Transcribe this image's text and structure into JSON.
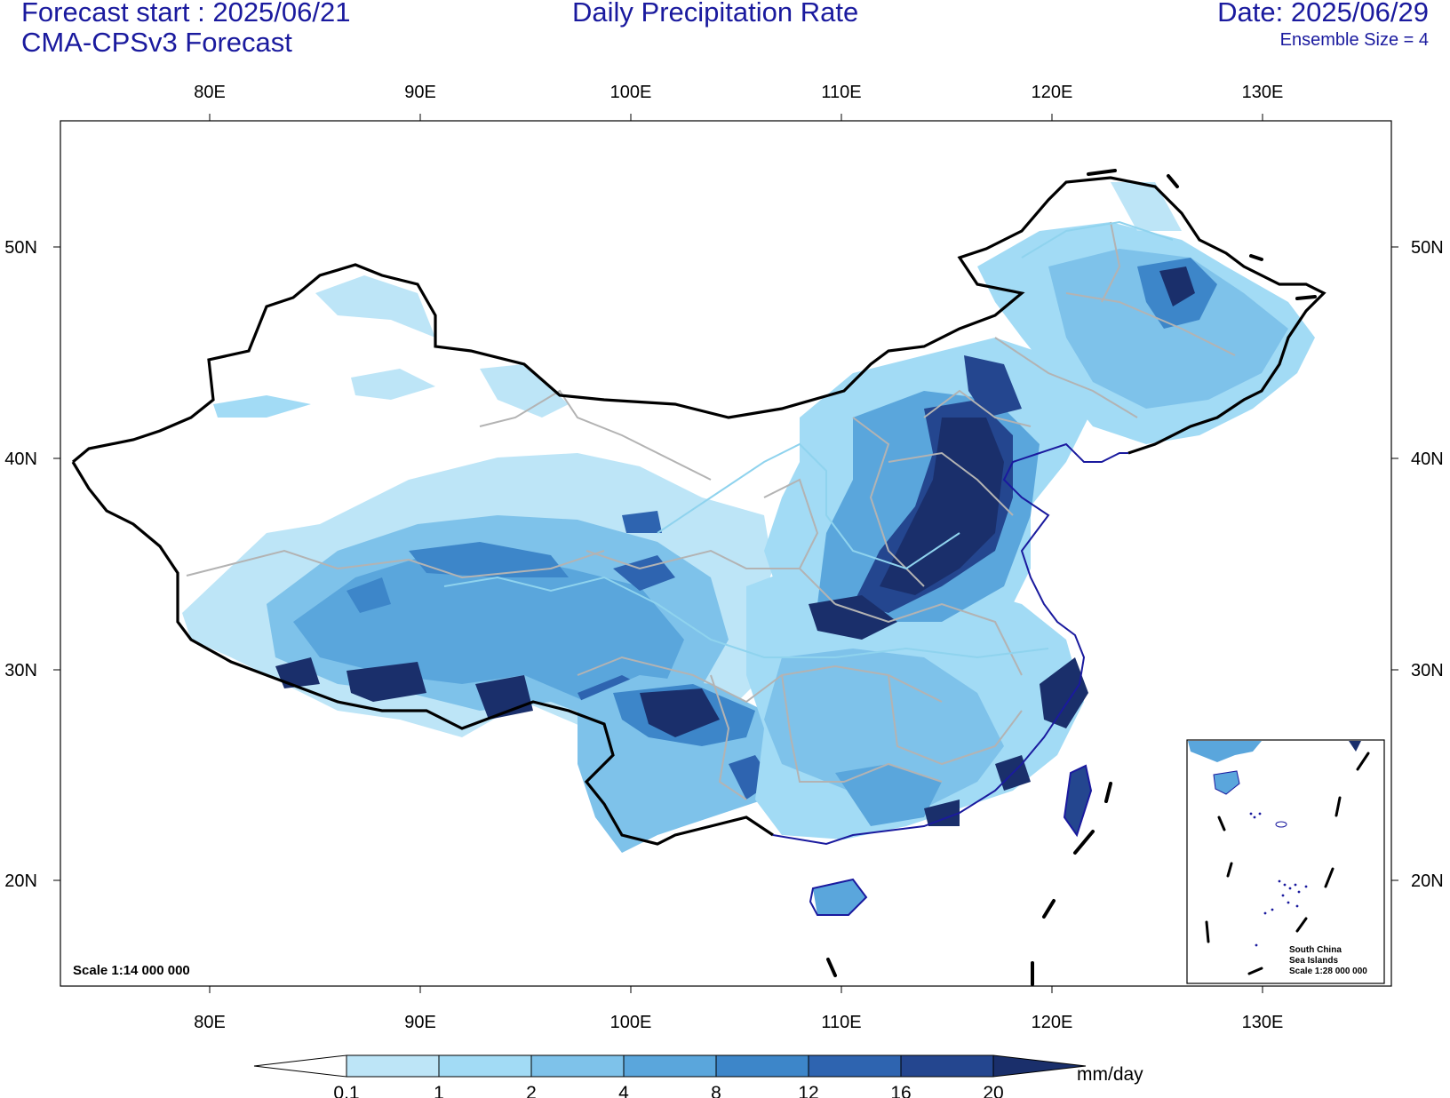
{
  "header": {
    "forecast_start": "Forecast start : 2025/06/21",
    "model": "CMA-CPSv3 Forecast",
    "title": "Daily Precipitation Rate",
    "date": "Date: 2025/06/29",
    "ensemble": "Ensemble Size = 4"
  },
  "map": {
    "lon_labels": [
      "80E",
      "90E",
      "100E",
      "110E",
      "120E",
      "130E"
    ],
    "lat_labels": [
      "50N",
      "40N",
      "30N",
      "20N"
    ],
    "scale_label": "Scale 1:14 000 000",
    "inset": {
      "line1": "South China",
      "line2": "Sea Islands",
      "line3": "Scale 1:28 000 000"
    }
  },
  "colorbar": {
    "unit": "mm/day",
    "levels": [
      "0.1",
      "1",
      "2",
      "4",
      "8",
      "12",
      "16",
      "20"
    ],
    "colors": [
      "#ffffff",
      "#bde5f7",
      "#a2dbf5",
      "#7ec2ea",
      "#5aa6dc",
      "#3d86c9",
      "#2e64b0",
      "#24468f",
      "#1a2f6b"
    ]
  },
  "legend_colors": {
    "border": "#000000",
    "province": "#b3b3b3",
    "river": "#8fd3ee",
    "coast": "#1a1a9e"
  }
}
